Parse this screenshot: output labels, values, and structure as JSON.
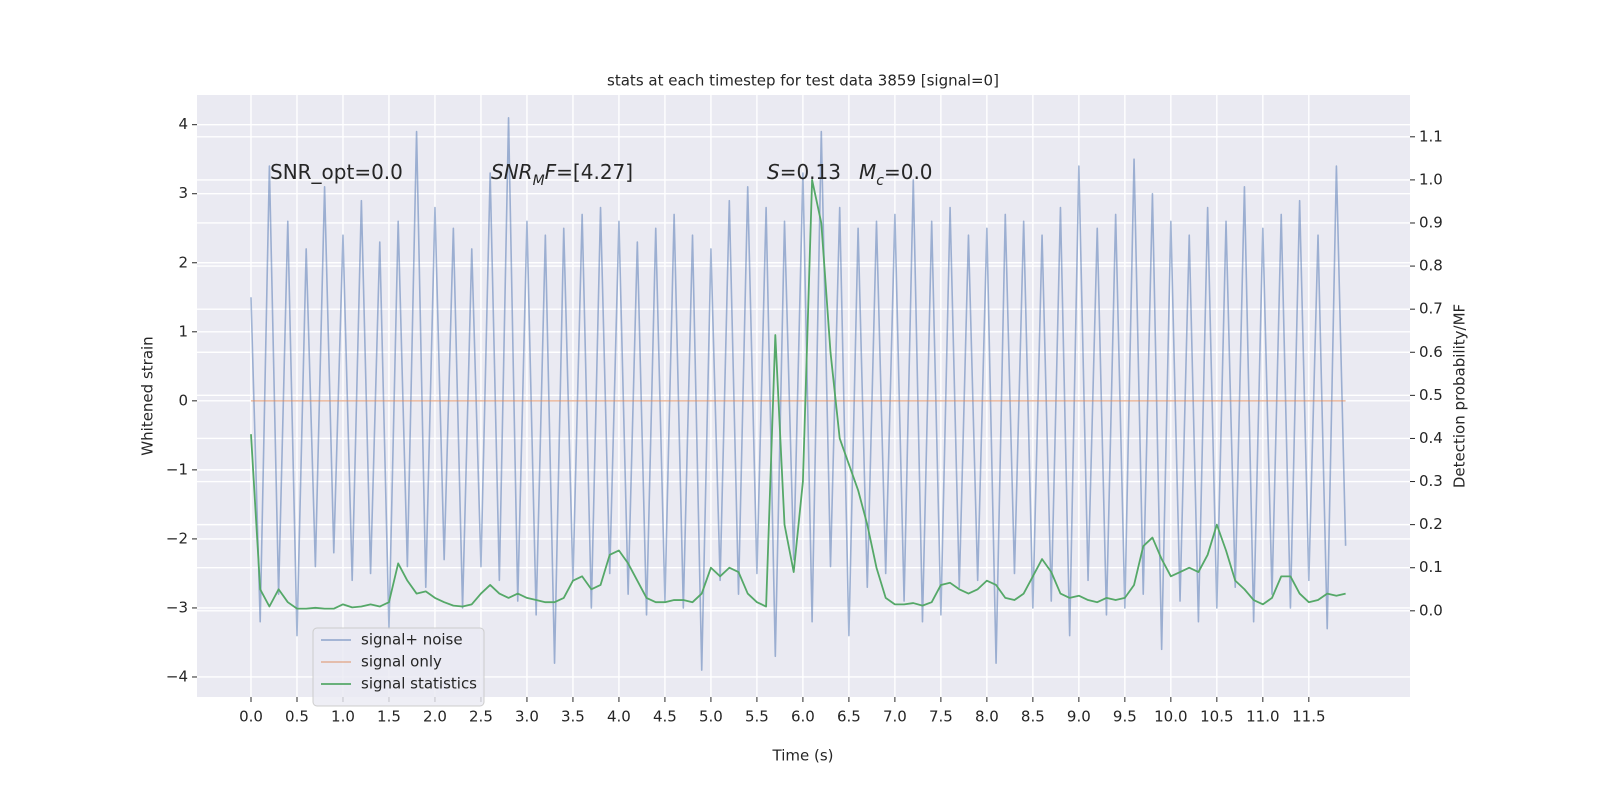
{
  "chart_data": {
    "type": "line",
    "title": "stats at each timestep for test data 3859 [signal=0]",
    "xlabel": "Time (s)",
    "ylabel": "Whitened strain",
    "y2label": "Detection probability/MF",
    "grid": true,
    "legend": "lower left",
    "xlim": [
      -0.587,
      12.6
    ],
    "ylim": [
      -4.29,
      4.43
    ],
    "y2lim": [
      -0.2,
      1.197
    ],
    "xticks": [
      {
        "value": 0,
        "label": "0.0"
      },
      0.5,
      {
        "value": 1,
        "label": "1.0"
      },
      1.5,
      {
        "value": 2,
        "label": "2.0"
      },
      2.5,
      {
        "value": 3,
        "label": "3.0"
      },
      3.5,
      {
        "value": 4,
        "label": "4.0"
      },
      4.5,
      {
        "value": 5,
        "label": "5.0"
      },
      5.5,
      {
        "value": 6,
        "label": "6.0"
      },
      6.5,
      {
        "value": 7,
        "label": "7.0"
      },
      7.5,
      {
        "value": 8,
        "label": "8.0"
      },
      8.5,
      {
        "value": 9,
        "label": "9.0"
      },
      9.5,
      {
        "value": 10,
        "label": "10.0"
      },
      10.5,
      {
        "value": 11,
        "label": "11.0"
      },
      11.5
    ],
    "yticks": [
      {
        "value": -4,
        "label": "−4"
      },
      {
        "value": -3,
        "label": "−3"
      },
      {
        "value": -2,
        "label": "−2"
      },
      {
        "value": -1,
        "label": "−1"
      },
      0,
      1,
      2,
      3,
      4
    ],
    "y2ticks": [
      {
        "value": 0,
        "label": "0.0"
      },
      0.1,
      0.2,
      0.3,
      0.4,
      0.5,
      0.6,
      0.7,
      0.8,
      0.9,
      {
        "value": 1,
        "label": "1.0"
      },
      1.1
    ],
    "annotations": [
      {
        "parts": [
          {
            "text": "SNR_opt=0.0"
          }
        ]
      },
      {
        "parts": [
          {
            "text": "SNR",
            "italic": true
          },
          {
            "text": "M",
            "italic": true,
            "sub": true
          },
          {
            "text": "F",
            "italic": true
          },
          {
            "text": "=[4.27]"
          }
        ]
      },
      {
        "parts": [
          {
            "text": "S",
            "italic": true
          },
          {
            "text": "=0.13"
          }
        ]
      },
      {
        "parts": [
          {
            "text": "M",
            "italic": true
          },
          {
            "text": "c",
            "italic": true,
            "sub": true
          },
          {
            "text": "=0.0"
          }
        ]
      }
    ],
    "x": [
      0,
      0.1,
      0.2,
      0.3,
      0.4,
      0.5,
      0.6,
      0.7,
      0.8,
      0.9,
      1,
      1.1,
      1.2,
      1.3,
      1.4,
      1.5,
      1.6,
      1.7,
      1.8,
      1.9,
      2,
      2.1,
      2.2,
      2.3,
      2.4,
      2.5,
      2.6,
      2.7,
      2.8,
      2.9,
      3,
      3.1,
      3.2,
      3.3,
      3.4,
      3.5,
      3.6,
      3.7,
      3.8,
      3.9,
      4,
      4.1,
      4.2,
      4.3,
      4.4,
      4.5,
      4.6,
      4.7,
      4.8,
      4.9,
      5,
      5.1,
      5.2,
      5.3,
      5.4,
      5.5,
      5.6,
      5.7,
      5.8,
      5.9,
      6,
      6.1,
      6.2,
      6.3,
      6.4,
      6.5,
      6.6,
      6.7,
      6.8,
      6.9,
      7,
      7.1,
      7.2,
      7.3,
      7.4,
      7.5,
      7.6,
      7.7,
      7.8,
      7.9,
      8,
      8.1,
      8.2,
      8.3,
      8.4,
      8.5,
      8.6,
      8.7,
      8.8,
      8.9,
      9,
      9.1,
      9.2,
      9.3,
      9.4,
      9.5,
      9.6,
      9.7,
      9.8,
      9.9,
      10,
      10.1,
      10.2,
      10.3,
      10.4,
      10.5,
      10.6,
      10.7,
      10.8,
      10.9,
      11,
      11.1,
      11.2,
      11.3,
      11.4,
      11.5,
      11.6,
      11.7,
      11.8,
      11.9
    ],
    "series": [
      {
        "name": "signal+ noise",
        "color": "#4c72b0",
        "opacity": 0.5,
        "values": [
          1.5,
          -3.2,
          3.4,
          -2.8,
          2.6,
          -3.4,
          2.2,
          -2.4,
          3.1,
          -2.2,
          2.4,
          -2.6,
          2.9,
          -2.5,
          2.3,
          -3.3,
          2.6,
          -2.4,
          3.9,
          -2.7,
          2.8,
          -2.3,
          2.5,
          -3.0,
          2.2,
          -2.4,
          3.3,
          -2.6,
          4.1,
          -2.9,
          2.6,
          -3.1,
          2.4,
          -3.8,
          2.5,
          -2.6,
          2.7,
          -3.0,
          2.8,
          -2.5,
          2.6,
          -2.8,
          2.3,
          -3.1,
          2.5,
          -2.9,
          2.7,
          -3.0,
          2.4,
          -3.9,
          2.2,
          -2.6,
          2.9,
          -2.8,
          3.1,
          -2.5,
          2.8,
          -3.7,
          2.6,
          -2.3,
          3.3,
          -3.2,
          3.9,
          -2.4,
          2.8,
          -3.4,
          2.5,
          -2.7,
          2.6,
          -2.5,
          2.7,
          -2.9,
          3.2,
          -3.2,
          2.6,
          -3.1,
          2.8,
          -2.7,
          2.4,
          -2.6,
          2.5,
          -3.8,
          2.7,
          -2.5,
          2.6,
          -3.0,
          2.4,
          -2.9,
          2.8,
          -3.4,
          3.4,
          -2.6,
          2.5,
          -3.1,
          2.7,
          -3.0,
          3.5,
          -2.8,
          3.0,
          -3.6,
          2.6,
          -2.9,
          2.4,
          -3.2,
          2.8,
          -3.0,
          2.6,
          -2.7,
          3.1,
          -3.2,
          2.5,
          -2.8,
          2.7,
          -3.0,
          2.9,
          -2.6,
          2.4,
          -3.3,
          3.4,
          -2.1
        ]
      },
      {
        "name": "signal only",
        "color": "#dd8452",
        "opacity": 0.5,
        "values": [
          0,
          0,
          0,
          0,
          0,
          0,
          0,
          0,
          0,
          0,
          0,
          0,
          0,
          0,
          0,
          0,
          0,
          0,
          0,
          0,
          0,
          0,
          0,
          0,
          0,
          0,
          0,
          0,
          0,
          0,
          0,
          0,
          0,
          0,
          0,
          0,
          0,
          0,
          0,
          0,
          0,
          0,
          0,
          0,
          0,
          0,
          0,
          0,
          0,
          0,
          0,
          0,
          0,
          0,
          0,
          0,
          0,
          0,
          0,
          0,
          0,
          0,
          0,
          0,
          0,
          0,
          0,
          0,
          0,
          0,
          0,
          0,
          0,
          0,
          0,
          0,
          0,
          0,
          0,
          0,
          0,
          0,
          0,
          0,
          0,
          0,
          0,
          0,
          0,
          0,
          0,
          0,
          0,
          0,
          0,
          0,
          0,
          0,
          0,
          0,
          0,
          0,
          0,
          0,
          0,
          0,
          0,
          0,
          0,
          0,
          0,
          0,
          0,
          0,
          0,
          0,
          0,
          0,
          0,
          0
        ]
      },
      {
        "name": "signal statistics",
        "color": "#55a868",
        "opacity": 1,
        "axis": "y2",
        "values": [
          0.41,
          0.05,
          0.01,
          0.05,
          0.02,
          0.005,
          0.005,
          0.007,
          0.005,
          0.005,
          0.015,
          0.008,
          0.01,
          0.015,
          0.01,
          0.02,
          0.11,
          0.07,
          0.04,
          0.045,
          0.03,
          0.02,
          0.012,
          0.01,
          0.015,
          0.04,
          0.06,
          0.04,
          0.03,
          0.04,
          0.03,
          0.025,
          0.02,
          0.02,
          0.03,
          0.07,
          0.08,
          0.05,
          0.06,
          0.13,
          0.14,
          0.11,
          0.07,
          0.03,
          0.02,
          0.02,
          0.025,
          0.025,
          0.02,
          0.04,
          0.1,
          0.08,
          0.1,
          0.09,
          0.04,
          0.02,
          0.01,
          0.64,
          0.2,
          0.09,
          0.3,
          1.0,
          0.9,
          0.6,
          0.4,
          0.34,
          0.28,
          0.2,
          0.1,
          0.03,
          0.015,
          0.015,
          0.018,
          0.012,
          0.02,
          0.06,
          0.065,
          0.05,
          0.04,
          0.05,
          0.07,
          0.06,
          0.03,
          0.025,
          0.04,
          0.08,
          0.12,
          0.09,
          0.04,
          0.03,
          0.035,
          0.025,
          0.02,
          0.03,
          0.025,
          0.03,
          0.06,
          0.15,
          0.17,
          0.12,
          0.08,
          0.09,
          0.1,
          0.09,
          0.13,
          0.2,
          0.14,
          0.07,
          0.05,
          0.025,
          0.015,
          0.03,
          0.08,
          0.08,
          0.04,
          0.02,
          0.025,
          0.04,
          0.035,
          0.04
        ]
      }
    ]
  }
}
